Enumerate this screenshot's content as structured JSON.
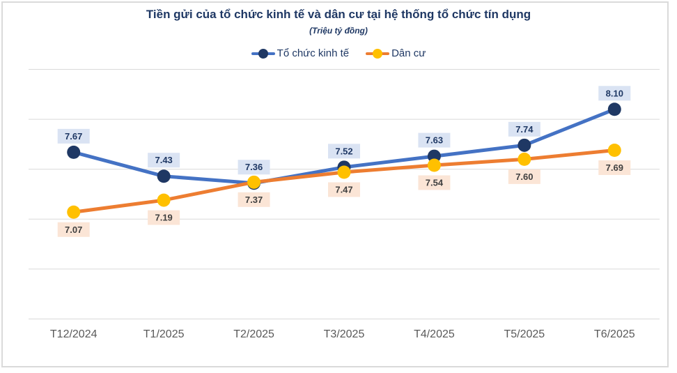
{
  "header": {
    "title": "Tiền gửi của tổ chức kinh tế và dân cư tại hệ thống tổ chức tín dụng",
    "subtitle": "(Triệu tỷ đồng)"
  },
  "chart_data": {
    "type": "line",
    "title": "Tiền gửi của tổ chức kinh tế và dân cư tại hệ thống tổ chức tín dụng",
    "subtitle": "(Triệu tỷ đồng)",
    "categories": [
      "T12/2024",
      "T1/2025",
      "T2/2025",
      "T3/2025",
      "T4/2025",
      "T5/2025",
      "T6/2025"
    ],
    "series": [
      {
        "name": "Tổ chức kinh tế",
        "values": [
          7.67,
          7.43,
          7.36,
          7.52,
          7.63,
          7.74,
          8.1
        ],
        "line_color": "#4472c4",
        "marker_color": "#1f3864",
        "label_bg": "#dae3f3",
        "label_color": "#1f3864",
        "label_position": "above"
      },
      {
        "name": "Dân cư",
        "values": [
          7.07,
          7.19,
          7.37,
          7.47,
          7.54,
          7.6,
          7.69
        ],
        "line_color": "#ed7d31",
        "marker_color": "#ffc000",
        "label_bg": "#fbe5d6",
        "label_color": "#404040",
        "label_position": "below"
      }
    ],
    "ylim": [
      6.0,
      8.5
    ],
    "y_gridline_step": 0.5,
    "y_axis_labels_visible": false,
    "grid": "horizontal",
    "gridline_color": "#d9d9d9",
    "axis_label_color": "#595959",
    "legend_position": "top",
    "xlabel": "",
    "ylabel": ""
  }
}
